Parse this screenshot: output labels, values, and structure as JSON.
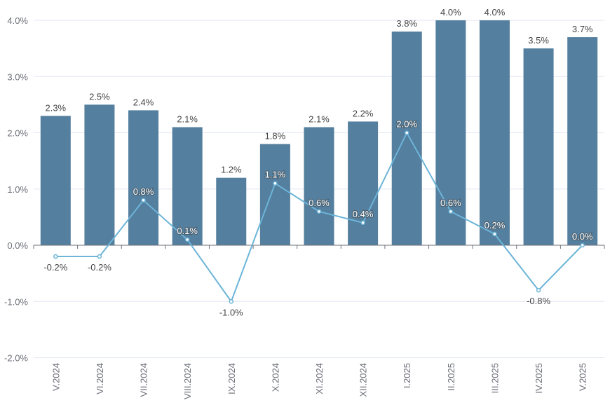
{
  "chart_data": {
    "type": "bar",
    "title": "",
    "xlabel": "",
    "ylabel": "",
    "ylim": [
      -2.0,
      4.0
    ],
    "yticks": [
      "-2.0%",
      "-1.0%",
      "0.0%",
      "1.0%",
      "2.0%",
      "3.0%",
      "4.0%"
    ],
    "grid": true,
    "legend": "none",
    "categories": [
      "V.2024",
      "VI.2024",
      "VII.2024",
      "VIII.2024",
      "IX.2024",
      "X.2024",
      "XI.2024",
      "XII.2024",
      "I.2025",
      "II.2025",
      "III.2025",
      "IV.2025",
      "V.2025"
    ],
    "series": [
      {
        "name": "bars",
        "type": "bar",
        "color": "#547f9e",
        "values": [
          2.3,
          2.5,
          2.4,
          2.1,
          1.2,
          1.8,
          2.1,
          2.2,
          3.8,
          4.0,
          4.0,
          3.5,
          3.7
        ],
        "labels": [
          "2.3%",
          "2.5%",
          "2.4%",
          "2.1%",
          "1.2%",
          "1.8%",
          "2.1%",
          "2.2%",
          "3.8%",
          "4.0%",
          "4.0%",
          "3.5%",
          "3.7%"
        ]
      },
      {
        "name": "line",
        "type": "line",
        "color": "#6cb4d8",
        "values": [
          -0.2,
          -0.2,
          0.8,
          0.1,
          -1.0,
          1.1,
          0.6,
          0.4,
          2.0,
          0.6,
          0.2,
          -0.8,
          0.0
        ],
        "labels": [
          "-0.2%",
          "-0.2%",
          "0.8%",
          "0.1%",
          "-1.0%",
          "1.1%",
          "0.6%",
          "0.4%",
          "2.0%",
          "0.6%",
          "0.2%",
          "-0.8%",
          "0.0%"
        ]
      }
    ]
  }
}
